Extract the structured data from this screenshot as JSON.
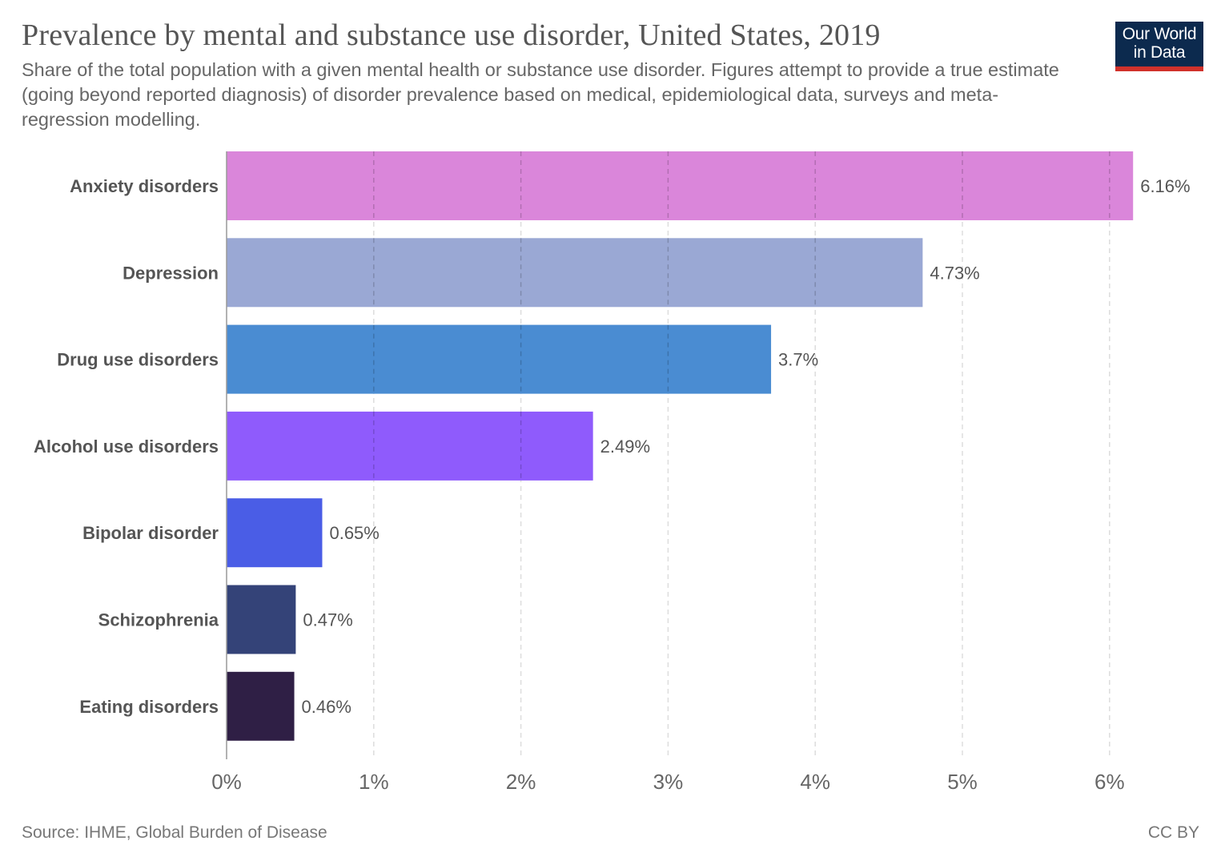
{
  "header": {
    "title": "Prevalence by mental and substance use disorder, United States, 2019",
    "subtitle": "Share of the total population with a given mental health or substance use disorder. Figures attempt to provide a true estimate (going beyond reported diagnosis) of disorder prevalence based on medical, epidemiological data, surveys and meta-regression modelling.",
    "logo_line1": "Our World",
    "logo_line2": "in Data",
    "logo_bg": "#0c2a4e",
    "logo_accent": "#d0312b"
  },
  "footer": {
    "source": "Source: IHME, Global Burden of Disease",
    "license": "CC BY"
  },
  "chart_data": {
    "type": "bar",
    "orientation": "horizontal",
    "title": "Prevalence by mental and substance use disorder, United States, 2019",
    "xlabel": "",
    "ylabel": "",
    "xlim": [
      0,
      6.3
    ],
    "grid": true,
    "categories": [
      "Anxiety disorders",
      "Depression",
      "Drug use disorders",
      "Alcohol use disorders",
      "Bipolar disorder",
      "Schizophrenia",
      "Eating disorders"
    ],
    "values": [
      6.16,
      4.73,
      3.7,
      2.49,
      0.65,
      0.47,
      0.46
    ],
    "value_labels": [
      "6.16%",
      "4.73%",
      "3.7%",
      "2.49%",
      "0.65%",
      "0.47%",
      "0.46%"
    ],
    "colors": [
      "#da86da",
      "#9aa8d4",
      "#4a8cd2",
      "#8f5bfc",
      "#4a5de6",
      "#344378",
      "#2f1f45"
    ],
    "ticks": [
      0,
      1,
      2,
      3,
      4,
      5,
      6
    ],
    "tick_labels": [
      "0%",
      "1%",
      "2%",
      "3%",
      "4%",
      "5%",
      "6%"
    ]
  }
}
